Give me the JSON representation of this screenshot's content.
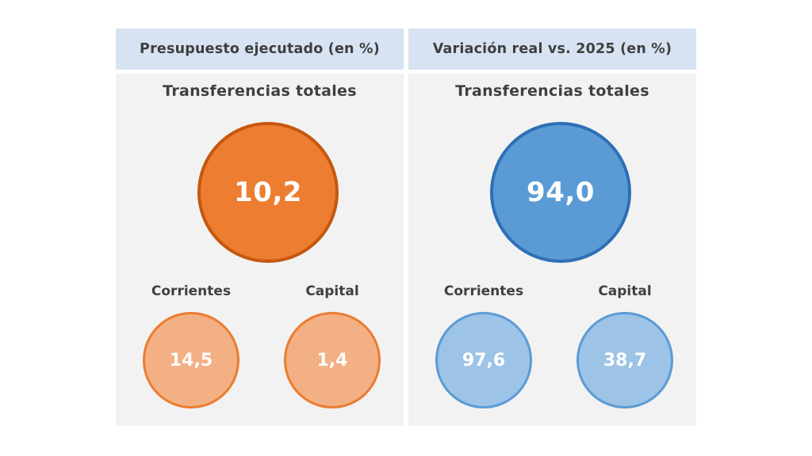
{
  "left_panel": {
    "header": "Presupuesto ejecutado (en %)",
    "title": "Transferencias totales",
    "total_value": "10,2",
    "items": [
      {
        "label": "Corrientes",
        "value": "14,5"
      },
      {
        "label": "Capital",
        "value": "1,4"
      }
    ],
    "colors": {
      "main": "#ed7d31",
      "secondary": "#f3b084"
    }
  },
  "right_panel": {
    "header": "Variación real vs. 2025 (en %)",
    "title": "Transferencias totales",
    "total_value": "94,0",
    "items": [
      {
        "label": "Corrientes",
        "value": "97,6"
      },
      {
        "label": "Capital",
        "value": "38,7"
      }
    ],
    "colors": {
      "main": "#5b9bd5",
      "secondary": "#9dc3e6"
    }
  }
}
